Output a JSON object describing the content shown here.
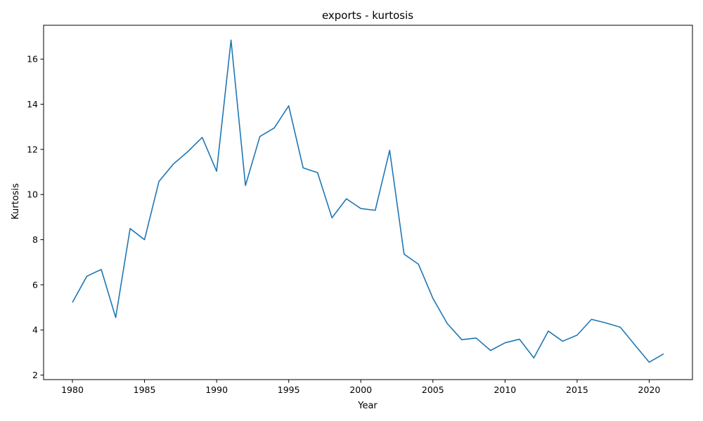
{
  "chart_data": {
    "type": "line",
    "title": "exports - kurtosis",
    "xlabel": "Year",
    "ylabel": "Kurtosis",
    "xlim": [
      1978,
      2023
    ],
    "ylim": [
      1.8,
      17.5
    ],
    "xticks": [
      1980,
      1985,
      1990,
      1995,
      2000,
      2005,
      2010,
      2015,
      2020
    ],
    "yticks": [
      2,
      4,
      6,
      8,
      10,
      12,
      14,
      16
    ],
    "grid": false,
    "series_color": "#1f77b4",
    "series": [
      {
        "x": [
          1980,
          1981,
          1982,
          1983,
          1984,
          1985,
          1986,
          1987,
          1988,
          1989,
          1990,
          1991,
          1992,
          1993,
          1994,
          1995,
          1996,
          1997,
          1998,
          1999,
          2000,
          2001,
          2002,
          2003,
          2004,
          2005,
          2006,
          2007,
          2008,
          2009,
          2010,
          2011,
          2012,
          2013,
          2014,
          2015,
          2016,
          2017,
          2018,
          2019,
          2020,
          2021
        ],
        "values": [
          5.22,
          6.38,
          6.68,
          4.55,
          8.49,
          8.0,
          10.58,
          11.35,
          11.9,
          12.53,
          11.03,
          16.84,
          10.4,
          12.57,
          12.95,
          13.93,
          11.18,
          10.97,
          8.97,
          9.81,
          9.38,
          9.3,
          11.96,
          7.36,
          6.91,
          5.4,
          4.28,
          3.57,
          3.64,
          3.09,
          3.43,
          3.59,
          2.76,
          3.95,
          3.5,
          3.77,
          4.47,
          4.31,
          4.12,
          3.34,
          2.57,
          2.94
        ]
      }
    ]
  }
}
